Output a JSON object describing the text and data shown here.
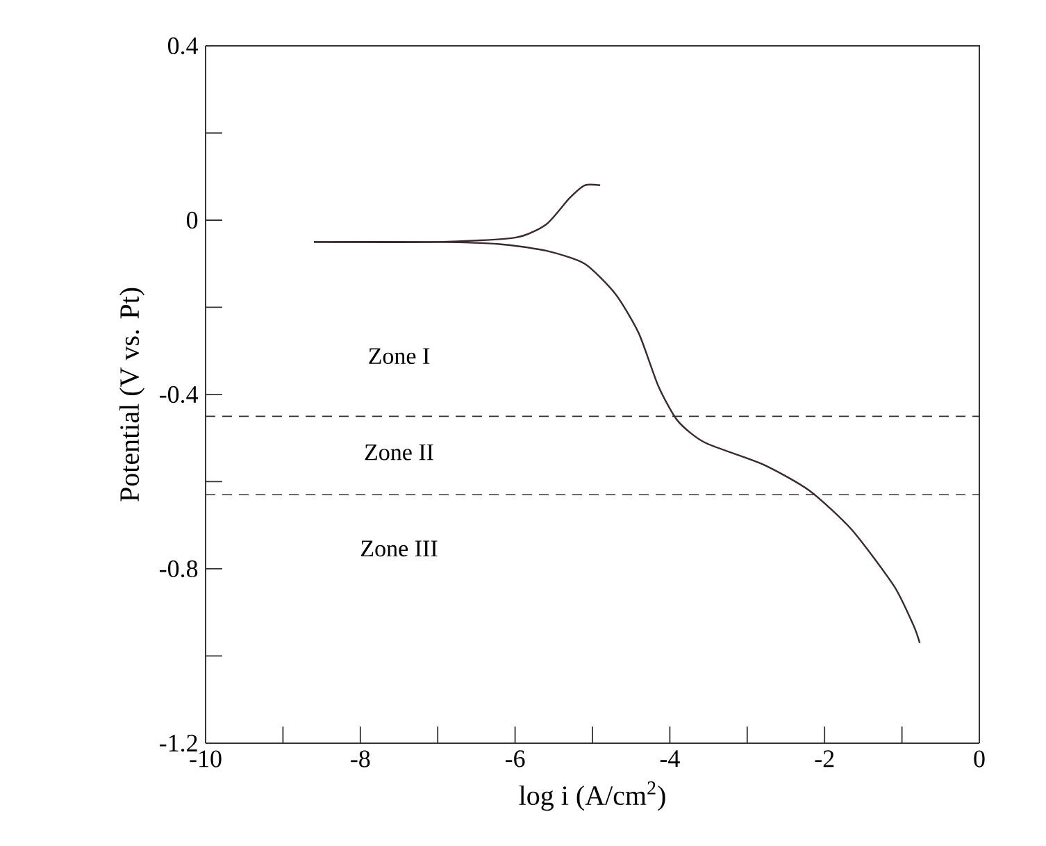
{
  "chart_data": {
    "type": "line",
    "xlabel": "log i (A/cm$^{2}$)",
    "ylabel": "Potential (V vs. Pt)",
    "xlim": [
      -10,
      0
    ],
    "ylim": [
      -1.2,
      0.4
    ],
    "xticks": [
      -10,
      {
        "value": -9,
        "label": null
      },
      -8,
      {
        "value": -7,
        "label": null
      },
      -6,
      {
        "value": -5,
        "label": null
      },
      -4,
      {
        "value": -3,
        "label": null
      },
      -2,
      {
        "value": -1,
        "label": null
      },
      0
    ],
    "yticks": [
      -1.2,
      {
        "value": -1.0,
        "label": null
      },
      -0.8,
      {
        "value": -0.6,
        "label": null
      },
      -0.4,
      {
        "value": -0.2,
        "label": null
      },
      0,
      {
        "value": 0.2,
        "label": null
      },
      0.4
    ],
    "series": [
      {
        "color": "#3a2a30",
        "x": [
          -8.6,
          -7,
          -6.0,
          -5.6,
          -5.3,
          -5.1,
          -4.9
        ],
        "values": [
          -0.05,
          -0.05,
          -0.04,
          -0.01,
          0.05,
          0.08,
          0.08
        ]
      },
      {
        "color": "#3a2a30",
        "x": [
          -8.6,
          -7,
          -6.2,
          -5.6,
          -5.1,
          -4.7,
          -4.4,
          -4.15,
          -3.9,
          -3.55,
          -2.8,
          -2.2,
          -1.65,
          -1.1,
          -0.85,
          -0.77
        ],
        "values": [
          -0.05,
          -0.05,
          -0.055,
          -0.07,
          -0.1,
          -0.17,
          -0.26,
          -0.38,
          -0.46,
          -0.51,
          -0.56,
          -0.62,
          -0.71,
          -0.84,
          -0.93,
          -0.97
        ]
      }
    ],
    "ref_lines": [
      {
        "axis": "y",
        "value": -0.45,
        "line_style": "dashed",
        "color": "#3a2a30"
      },
      {
        "axis": "y",
        "value": -0.63,
        "line_style": "dashed",
        "color": "#3a2a30"
      }
    ],
    "annotations": [
      "Zone I",
      "Zone II",
      "Zone III"
    ],
    "grid": false,
    "marker": "none",
    "line_style": "solid"
  }
}
